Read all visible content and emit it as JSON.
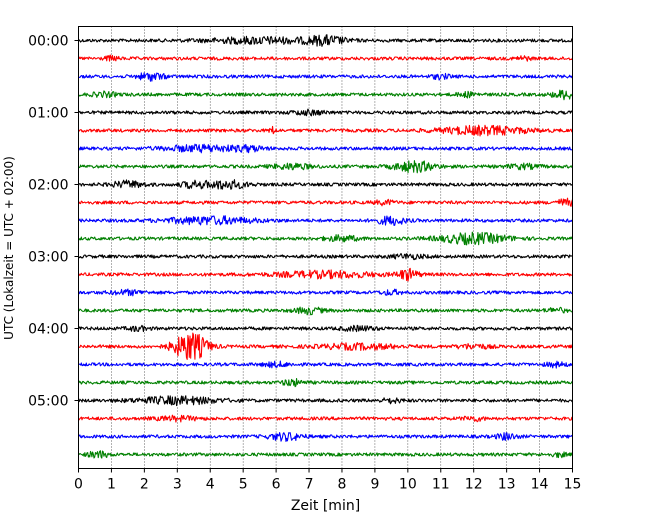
{
  "chart_data": {
    "type": "line",
    "chart_kind": "helicorder",
    "xlabel": "Zeit  [min]",
    "ylabel": "UTC (Lokalzeit = UTC + 02:00)",
    "xlim": [
      0,
      15
    ],
    "x_ticks": [
      "0",
      "1",
      "2",
      "3",
      "4",
      "5",
      "6",
      "7",
      "8",
      "9",
      "10",
      "11",
      "12",
      "13",
      "14",
      "15"
    ],
    "y_tick_labels": [
      "00:00",
      "01:00",
      "02:00",
      "03:00",
      "04:00",
      "05:00"
    ],
    "y_tick_rows": [
      0,
      4,
      8,
      12,
      16,
      20
    ],
    "row_count": 24,
    "row_minutes": 15,
    "grid": "vertical-dotted",
    "trace_colors": [
      "#000000",
      "#ff0000",
      "#0000ff",
      "#008000"
    ],
    "rows": [
      {
        "start": "00:00",
        "bursts": [
          {
            "t": 5.5,
            "w": 1.5,
            "a": 3
          },
          {
            "t": 7.5,
            "w": 0.6,
            "a": 4
          }
        ]
      },
      {
        "start": "00:15",
        "bursts": [
          {
            "t": 1.0,
            "w": 0.2,
            "a": 2
          },
          {
            "t": 13.5,
            "w": 0.2,
            "a": 2
          }
        ]
      },
      {
        "start": "00:30",
        "bursts": [
          {
            "t": 2.2,
            "w": 0.4,
            "a": 3.5
          },
          {
            "t": 11.0,
            "w": 0.3,
            "a": 2
          }
        ]
      },
      {
        "start": "00:45",
        "bursts": [
          {
            "t": 0.8,
            "w": 0.4,
            "a": 2
          },
          {
            "t": 11.8,
            "w": 0.3,
            "a": 2
          },
          {
            "t": 14.8,
            "w": 0.4,
            "a": 4
          }
        ]
      },
      {
        "start": "01:00",
        "bursts": [
          {
            "t": 7.0,
            "w": 0.5,
            "a": 2
          }
        ]
      },
      {
        "start": "01:15",
        "bursts": [
          {
            "t": 5.9,
            "w": 0.1,
            "a": 3
          },
          {
            "t": 12.3,
            "w": 1.3,
            "a": 4
          }
        ]
      },
      {
        "start": "01:30",
        "bursts": [
          {
            "t": 3.8,
            "w": 1.2,
            "a": 3
          },
          {
            "t": 5.2,
            "w": 0.4,
            "a": 2
          }
        ]
      },
      {
        "start": "01:45",
        "bursts": [
          {
            "t": 6.5,
            "w": 0.6,
            "a": 2.5
          },
          {
            "t": 10.2,
            "w": 0.6,
            "a": 5
          },
          {
            "t": 13.5,
            "w": 0.5,
            "a": 2
          }
        ]
      },
      {
        "start": "02:00",
        "bursts": [
          {
            "t": 1.5,
            "w": 0.5,
            "a": 3
          },
          {
            "t": 3.5,
            "w": 0.4,
            "a": 3
          },
          {
            "t": 4.5,
            "w": 0.6,
            "a": 4
          }
        ]
      },
      {
        "start": "02:15",
        "bursts": [
          {
            "t": 9.3,
            "w": 0.3,
            "a": 2
          },
          {
            "t": 14.8,
            "w": 0.3,
            "a": 3
          }
        ]
      },
      {
        "start": "02:30",
        "bursts": [
          {
            "t": 4.0,
            "w": 1.3,
            "a": 3.5
          },
          {
            "t": 9.5,
            "w": 0.4,
            "a": 4
          }
        ]
      },
      {
        "start": "02:45",
        "bursts": [
          {
            "t": 8.0,
            "w": 0.5,
            "a": 2.5
          },
          {
            "t": 12.0,
            "w": 1.0,
            "a": 5
          }
        ]
      },
      {
        "start": "03:00",
        "bursts": [
          {
            "t": 10.0,
            "w": 0.5,
            "a": 2
          }
        ]
      },
      {
        "start": "03:15",
        "bursts": [
          {
            "t": 7.5,
            "w": 1.5,
            "a": 3
          },
          {
            "t": 10.0,
            "w": 0.3,
            "a": 5
          }
        ]
      },
      {
        "start": "03:30",
        "bursts": [
          {
            "t": 1.5,
            "w": 0.5,
            "a": 2
          },
          {
            "t": 9.5,
            "w": 0.3,
            "a": 2
          }
        ]
      },
      {
        "start": "03:45",
        "bursts": [
          {
            "t": 7.0,
            "w": 0.4,
            "a": 3
          },
          {
            "t": 14.5,
            "w": 0.3,
            "a": 2
          }
        ]
      },
      {
        "start": "04:00",
        "bursts": [
          {
            "t": 1.8,
            "w": 0.3,
            "a": 2
          },
          {
            "t": 8.5,
            "w": 0.5,
            "a": 2
          }
        ]
      },
      {
        "start": "04:15",
        "bursts": [
          {
            "t": 3.4,
            "w": 0.5,
            "a": 14
          },
          {
            "t": 8.5,
            "w": 1.2,
            "a": 2.5
          },
          {
            "t": 12.0,
            "w": 0.5,
            "a": 2
          }
        ]
      },
      {
        "start": "04:30",
        "bursts": [
          {
            "t": 6.0,
            "w": 0.4,
            "a": 2
          },
          {
            "t": 14.5,
            "w": 0.3,
            "a": 2
          }
        ]
      },
      {
        "start": "04:45",
        "bursts": [
          {
            "t": 6.5,
            "w": 0.3,
            "a": 3
          }
        ]
      },
      {
        "start": "05:00",
        "bursts": [
          {
            "t": 3.0,
            "w": 1.2,
            "a": 3.5
          },
          {
            "t": 9.5,
            "w": 0.3,
            "a": 2
          }
        ]
      },
      {
        "start": "05:15",
        "bursts": [
          {
            "t": 3.0,
            "w": 0.6,
            "a": 2
          },
          {
            "t": 12.0,
            "w": 0.3,
            "a": 2
          }
        ]
      },
      {
        "start": "05:30",
        "bursts": [
          {
            "t": 6.3,
            "w": 0.5,
            "a": 3.5
          },
          {
            "t": 13.0,
            "w": 0.3,
            "a": 3
          }
        ]
      },
      {
        "start": "05:45",
        "bursts": [
          {
            "t": 0.6,
            "w": 0.3,
            "a": 3
          },
          {
            "t": 14.6,
            "w": 0.2,
            "a": 2
          }
        ]
      }
    ]
  }
}
